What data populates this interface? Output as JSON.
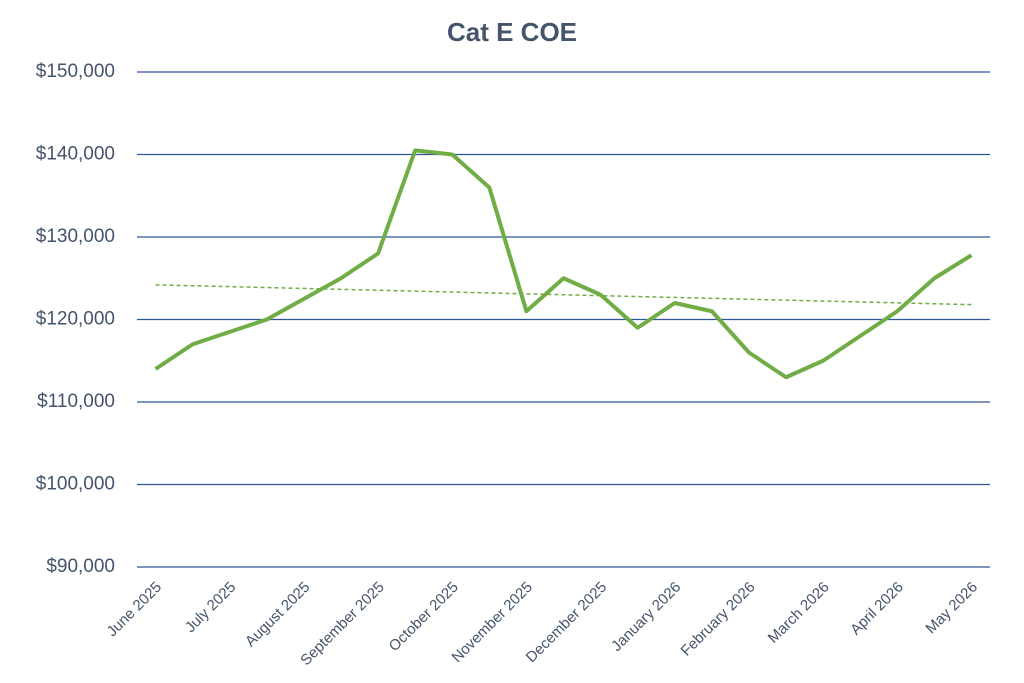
{
  "chart_data": {
    "type": "line",
    "title": "Cat E COE",
    "categories": [
      "June 2025",
      null,
      "July 2025",
      null,
      "August 2025",
      null,
      "September 2025",
      null,
      "October 2025",
      null,
      "November 2025",
      null,
      "December 2025",
      null,
      "January 2026",
      null,
      "February 2026",
      null,
      "March 2026",
      null,
      "April 2026",
      null,
      "May 2026"
    ],
    "series": [
      {
        "color": "#70ad47",
        "values": [
          114000,
          117000,
          118500,
          120000,
          122500,
          125000,
          128000,
          140500,
          140000,
          136000,
          121000,
          125000,
          123000,
          119000,
          122000,
          121000,
          116000,
          113000,
          115000,
          118000,
          121000,
          125000,
          127800
        ]
      }
    ],
    "trendline": {
      "color": "#70ad47",
      "values": [
        124200,
        121800
      ]
    },
    "ylim": [
      90000,
      150000
    ],
    "yticks": [
      {
        "value": 90000,
        "label": "$90,000"
      },
      {
        "value": 100000,
        "label": "$100,000"
      },
      {
        "value": 110000,
        "label": "$110,000"
      },
      {
        "value": 120000,
        "label": "$120,000"
      },
      {
        "value": 130000,
        "label": "$130,000"
      },
      {
        "value": 140000,
        "label": "$140,000"
      },
      {
        "value": 150000,
        "label": "$150,000"
      }
    ],
    "grid": true
  }
}
